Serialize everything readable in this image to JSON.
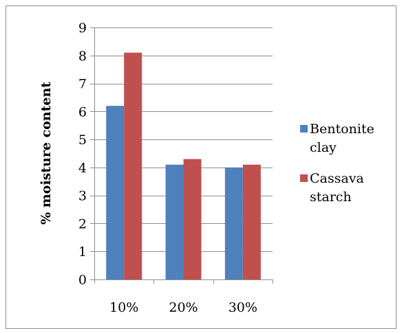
{
  "chart_data": {
    "type": "bar",
    "title": "",
    "xlabel": "",
    "ylabel": "% moisture content",
    "categories": [
      "10%",
      "20%",
      "30%"
    ],
    "series": [
      {
        "name": "Bentonite clay",
        "values": [
          6.2,
          4.1,
          4.0
        ],
        "color": "#4f81bd",
        "legend_lines": [
          "Bentonite",
          "clay"
        ]
      },
      {
        "name": "Cassava starch",
        "values": [
          8.1,
          4.3,
          4.1
        ],
        "color": "#c0504d",
        "legend_lines": [
          "Cassava",
          "starch"
        ]
      }
    ],
    "ylim": [
      0,
      9
    ],
    "yticks": [
      "0",
      "1",
      "2",
      "3",
      "4",
      "5",
      "6",
      "7",
      "8",
      "9"
    ],
    "grid": true,
    "legend_position": "right"
  }
}
